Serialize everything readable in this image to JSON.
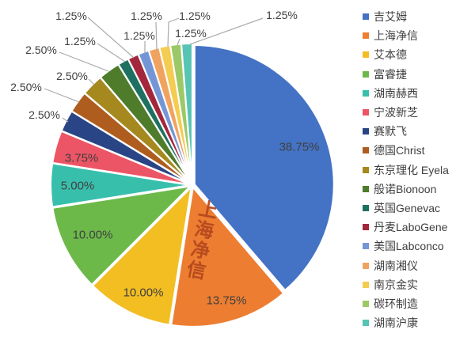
{
  "chart_data": {
    "type": "pie",
    "title": "",
    "legend_position": "right",
    "direction": "clockwise",
    "start_angle_deg": 0,
    "value_label_format": "0.00%",
    "series": [
      {
        "name": "吉艾姆",
        "value": 38.75,
        "color": "#4472C4"
      },
      {
        "name": "上海净信",
        "value": 13.75,
        "color": "#ED7D31"
      },
      {
        "name": "艾本德",
        "value": 10.0,
        "color": "#F2BE22"
      },
      {
        "name": "富睿捷",
        "value": 10.0,
        "color": "#6CB94A"
      },
      {
        "name": "湖南赫西",
        "value": 5.0,
        "color": "#38BFAC"
      },
      {
        "name": "宁波新芝",
        "value": 3.75,
        "color": "#EC5565"
      },
      {
        "name": "赛默飞",
        "value": 2.5,
        "color": "#2A4585"
      },
      {
        "name": "德国Christ",
        "value": 2.5,
        "color": "#AE5D1E"
      },
      {
        "name": "东京理化 Eyela",
        "value": 2.5,
        "color": "#A5891F"
      },
      {
        "name": "般诺Bionoon",
        "value": 2.5,
        "color": "#4E7C2B"
      },
      {
        "name": "英国Genevac",
        "value": 1.25,
        "color": "#1E7160"
      },
      {
        "name": "丹麦LaboGene",
        "value": 1.25,
        "color": "#A3273C"
      },
      {
        "name": "美国Labconco",
        "value": 1.25,
        "color": "#7596D6"
      },
      {
        "name": "湖南湘仪",
        "value": 1.25,
        "color": "#F0A35F"
      },
      {
        "name": "南京金实",
        "value": 1.25,
        "color": "#F4CC52"
      },
      {
        "name": "碳环制造",
        "value": 1.25,
        "color": "#9CC968"
      },
      {
        "name": "湖南沪康",
        "value": 1.25,
        "color": "#57C4B4"
      }
    ]
  },
  "watermark": {
    "text": "上海净信",
    "color": "#B5491F"
  },
  "style": {
    "label_color": "#404040",
    "leader_line_color": "#ABABAB",
    "slice_border_color": "#FFFFFF",
    "background": "#FFFFFF"
  }
}
